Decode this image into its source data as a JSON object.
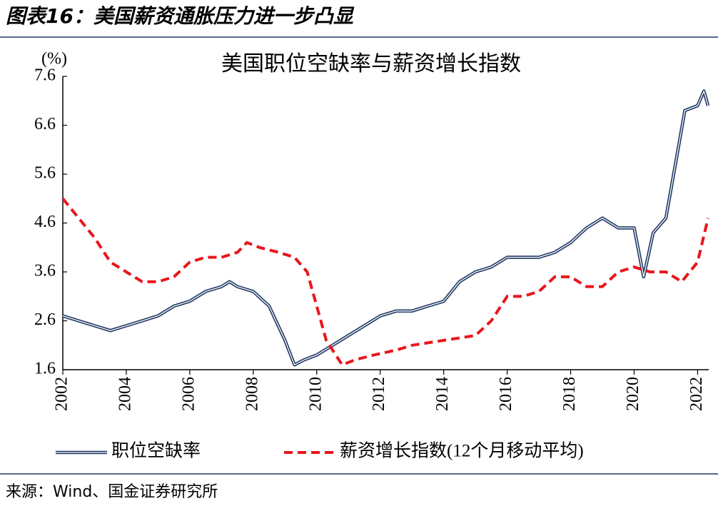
{
  "header": "图表16：美国薪资通胀压力进一步凸显",
  "source": "来源：Wind、国金证券研究所",
  "chart_data": {
    "type": "line",
    "title": "美国职位空缺率与薪资增长指数",
    "y_unit_label": "(%)",
    "xlim": [
      2002,
      2022.35
    ],
    "xticks": [
      2002,
      2004,
      2006,
      2008,
      2010,
      2012,
      2014,
      2016,
      2018,
      2020,
      2022
    ],
    "ylim": [
      1.6,
      7.6
    ],
    "yticks": [
      1.6,
      2.6,
      3.6,
      4.6,
      5.6,
      6.6,
      7.6
    ],
    "series": [
      {
        "name": "职位空缺率",
        "color": "#1f3864",
        "style": "double",
        "x": [
          2002.0,
          2002.5,
          2003.0,
          2003.5,
          2004.0,
          2004.5,
          2005.0,
          2005.5,
          2006.0,
          2006.5,
          2007.0,
          2007.25,
          2007.5,
          2008.0,
          2008.5,
          2009.0,
          2009.3,
          2009.6,
          2010.0,
          2010.5,
          2011.0,
          2011.5,
          2012.0,
          2012.5,
          2013.0,
          2013.5,
          2014.0,
          2014.5,
          2015.0,
          2015.5,
          2016.0,
          2016.5,
          2017.0,
          2017.5,
          2018.0,
          2018.5,
          2019.0,
          2019.5,
          2020.0,
          2020.3,
          2020.6,
          2021.0,
          2021.3,
          2021.6,
          2022.0,
          2022.2,
          2022.33
        ],
        "values": [
          2.7,
          2.6,
          2.5,
          2.4,
          2.5,
          2.6,
          2.7,
          2.9,
          3.0,
          3.2,
          3.3,
          3.4,
          3.3,
          3.2,
          2.9,
          2.2,
          1.7,
          1.8,
          1.9,
          2.1,
          2.3,
          2.5,
          2.7,
          2.8,
          2.8,
          2.9,
          3.0,
          3.4,
          3.6,
          3.7,
          3.9,
          3.9,
          3.9,
          4.0,
          4.2,
          4.5,
          4.7,
          4.5,
          4.5,
          3.5,
          4.4,
          4.7,
          5.8,
          6.9,
          7.0,
          7.3,
          7.0
        ]
      },
      {
        "name": "薪资增长指数(12个月移动平均)",
        "color": "#e8161b",
        "style": "dashed",
        "x": [
          2002.0,
          2002.5,
          2003.0,
          2003.5,
          2004.0,
          2004.5,
          2005.0,
          2005.5,
          2006.0,
          2006.5,
          2007.0,
          2007.5,
          2007.8,
          2008.2,
          2008.8,
          2009.3,
          2009.7,
          2010.0,
          2010.3,
          2010.8,
          2011.2,
          2011.8,
          2012.5,
          2013.0,
          2014.0,
          2015.0,
          2015.5,
          2016.0,
          2016.5,
          2017.0,
          2017.5,
          2018.0,
          2018.5,
          2019.0,
          2019.5,
          2020.0,
          2020.5,
          2021.0,
          2021.5,
          2022.0,
          2022.33
        ],
        "values": [
          5.1,
          4.7,
          4.3,
          3.8,
          3.6,
          3.4,
          3.4,
          3.5,
          3.8,
          3.9,
          3.9,
          4.0,
          4.2,
          4.1,
          4.0,
          3.9,
          3.6,
          2.9,
          2.2,
          1.7,
          1.8,
          1.9,
          2.0,
          2.1,
          2.2,
          2.3,
          2.6,
          3.1,
          3.1,
          3.2,
          3.5,
          3.5,
          3.3,
          3.3,
          3.6,
          3.7,
          3.6,
          3.6,
          3.4,
          3.8,
          4.7
        ]
      }
    ]
  }
}
